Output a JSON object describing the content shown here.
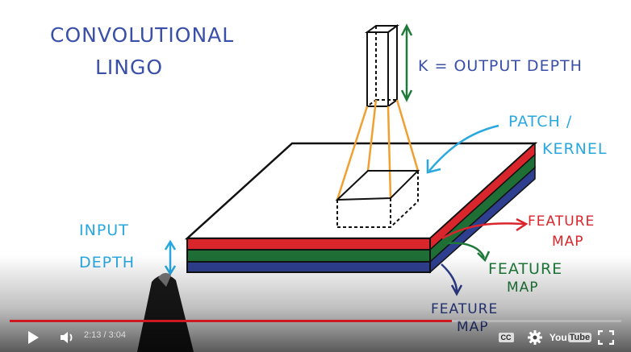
{
  "whiteboard": {
    "title_line1": "CONVOLUTIONAL",
    "title_line2": "LINGO",
    "k_label": "K = OUTPUT DEPTH",
    "patch_line1": "PATCH /",
    "patch_line2": "KERNEL",
    "input_line1": "INPUT",
    "input_line2": "DEPTH",
    "feature_red_1": "FEATURE",
    "feature_red_2": "MAP",
    "feature_green_1": "FEATURE",
    "feature_green_2": "MAP",
    "feature_blue_1": "FEATURE",
    "feature_blue_2": "MAP"
  },
  "colors": {
    "ink_blue": "#3a4fa8",
    "annot_cyan": "#29a8e0",
    "arrow_green": "#1f7a3a",
    "layer_red": "#d9262c",
    "layer_green": "#1f6e36",
    "layer_blue": "#2e3f8f",
    "kernel_orange": "#f0a030",
    "progress_red": "#cc181e"
  },
  "player": {
    "current_time": "2:13",
    "duration": "3:04",
    "time_display": "2:13 / 3:04",
    "progress_fraction": 0.723,
    "buttons": {
      "play": "play-icon",
      "volume": "volume-icon",
      "captions": "CC",
      "settings": "gear-icon",
      "youtube_logo_text_1": "You",
      "youtube_logo_text_2": "Tube",
      "fullscreen": "fullscreen-icon"
    }
  }
}
